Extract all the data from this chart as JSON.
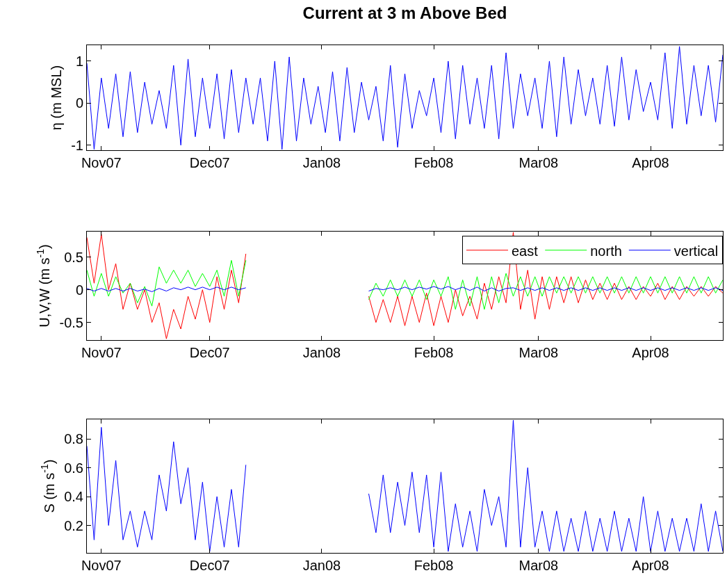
{
  "chart_data": [
    {
      "type": "line",
      "title": "Current at 3 m Above Bed",
      "ylabel": "η (m MSL)",
      "legend": false,
      "grid": false,
      "marker": "none",
      "line_style": "solid",
      "xlim": [
        "2007-10-28",
        "2008-04-21"
      ],
      "ylim": [
        -1.12,
        1.38
      ],
      "yticks": [
        -1,
        0,
        1
      ],
      "xticks": [
        {
          "value": "2007-11-01",
          "label": "Nov07"
        },
        {
          "value": "2007-12-01",
          "label": "Dec07"
        },
        {
          "value": "2008-01-01",
          "label": "Jan08"
        },
        {
          "value": "2008-02-01",
          "label": "Feb08"
        },
        {
          "value": "2008-03-01",
          "label": "Mar08"
        },
        {
          "value": "2008-04-01",
          "label": "Apr08"
        }
      ],
      "x": [
        "2007-10-28",
        "2007-10-30",
        "2007-11-01",
        "2007-11-03",
        "2007-11-05",
        "2007-11-07",
        "2007-11-09",
        "2007-11-11",
        "2007-11-13",
        "2007-11-15",
        "2007-11-17",
        "2007-11-19",
        "2007-11-21",
        "2007-11-23",
        "2007-11-25",
        "2007-11-27",
        "2007-11-29",
        "2007-12-01",
        "2007-12-03",
        "2007-12-05",
        "2007-12-07",
        "2007-12-09",
        "2007-12-11",
        "2007-12-13",
        "2007-12-15",
        "2007-12-17",
        "2007-12-19",
        "2007-12-21",
        "2007-12-23",
        "2007-12-25",
        "2007-12-27",
        "2007-12-29",
        "2007-12-31",
        "2008-01-02",
        "2008-01-04",
        "2008-01-06",
        "2008-01-08",
        "2008-01-10",
        "2008-01-12",
        "2008-01-14",
        "2008-01-16",
        "2008-01-18",
        "2008-01-20",
        "2008-01-22",
        "2008-01-24",
        "2008-01-26",
        "2008-01-28",
        "2008-01-30",
        "2008-02-01",
        "2008-02-03",
        "2008-02-05",
        "2008-02-07",
        "2008-02-09",
        "2008-02-11",
        "2008-02-13",
        "2008-02-15",
        "2008-02-17",
        "2008-02-19",
        "2008-02-21",
        "2008-02-23",
        "2008-02-25",
        "2008-02-27",
        "2008-02-29",
        "2008-03-02",
        "2008-03-04",
        "2008-03-06",
        "2008-03-08",
        "2008-03-10",
        "2008-03-12",
        "2008-03-14",
        "2008-03-16",
        "2008-03-18",
        "2008-03-20",
        "2008-03-22",
        "2008-03-24",
        "2008-03-26",
        "2008-03-28",
        "2008-03-30",
        "2008-04-01",
        "2008-04-03",
        "2008-04-05",
        "2008-04-07",
        "2008-04-09",
        "2008-04-11",
        "2008-04-13",
        "2008-04-15",
        "2008-04-17",
        "2008-04-19",
        "2008-04-21"
      ],
      "series": [
        {
          "color": "#0000ff",
          "values": [
            0.95,
            -1.1,
            0.6,
            -0.6,
            0.7,
            -0.8,
            0.75,
            -0.7,
            0.5,
            -0.5,
            0.3,
            -0.6,
            0.9,
            -1.0,
            1.05,
            -0.8,
            0.6,
            -0.6,
            0.7,
            -0.85,
            0.8,
            -0.7,
            0.6,
            -0.5,
            0.6,
            -0.9,
            1.0,
            -1.1,
            1.1,
            -0.9,
            0.6,
            -0.5,
            0.4,
            -0.7,
            0.75,
            -0.9,
            0.85,
            -0.7,
            0.5,
            -0.4,
            0.4,
            -0.9,
            0.9,
            -1.05,
            0.7,
            -0.6,
            0.3,
            -0.3,
            0.6,
            -0.7,
            1.0,
            -0.85,
            0.9,
            -0.5,
            0.6,
            -0.6,
            0.9,
            -0.85,
            1.2,
            -0.6,
            0.7,
            -0.3,
            0.6,
            -0.6,
            1.0,
            -0.8,
            1.1,
            -0.5,
            0.8,
            -0.3,
            0.6,
            -0.5,
            0.9,
            -0.55,
            1.1,
            -0.4,
            0.8,
            -0.2,
            0.5,
            -0.4,
            1.2,
            -0.6,
            1.35,
            -0.5,
            0.9,
            -0.3,
            0.9,
            -0.45,
            1.15
          ]
        }
      ]
    },
    {
      "type": "line",
      "ylabel": "U,V,W (m s$^{-1}$)",
      "legend": "top right",
      "grid": false,
      "marker": "none",
      "line_style": "solid",
      "xlim": [
        "2007-10-28",
        "2008-04-21"
      ],
      "ylim": [
        -0.77,
        0.89
      ],
      "yticks": [
        -0.5,
        0,
        0.5
      ],
      "xticks": [
        {
          "value": "2007-11-01",
          "label": "Nov07"
        },
        {
          "value": "2007-12-01",
          "label": "Dec07"
        },
        {
          "value": "2008-01-01",
          "label": "Jan08"
        },
        {
          "value": "2008-02-01",
          "label": "Feb08"
        },
        {
          "value": "2008-03-01",
          "label": "Mar08"
        },
        {
          "value": "2008-04-01",
          "label": "Apr08"
        }
      ],
      "x": [
        "2007-10-28",
        "2007-10-30",
        "2007-11-01",
        "2007-11-03",
        "2007-11-05",
        "2007-11-07",
        "2007-11-09",
        "2007-11-11",
        "2007-11-13",
        "2007-11-15",
        "2007-11-17",
        "2007-11-19",
        "2007-11-21",
        "2007-11-23",
        "2007-11-25",
        "2007-11-27",
        "2007-11-29",
        "2007-12-01",
        "2007-12-03",
        "2007-12-05",
        "2007-12-07",
        "2007-12-09",
        "2007-12-11",
        "2007-12-13",
        "2007-12-15",
        "2007-12-17",
        "2007-12-19",
        "2007-12-21",
        "2007-12-23",
        "2007-12-25",
        "2007-12-27",
        "2007-12-29",
        "2007-12-31",
        "2008-01-02",
        "2008-01-04",
        "2008-01-06",
        "2008-01-08",
        "2008-01-10",
        "2008-01-12",
        "2008-01-14",
        "2008-01-16",
        "2008-01-18",
        "2008-01-20",
        "2008-01-22",
        "2008-01-24",
        "2008-01-26",
        "2008-01-28",
        "2008-01-30",
        "2008-02-01",
        "2008-02-03",
        "2008-02-05",
        "2008-02-07",
        "2008-02-09",
        "2008-02-11",
        "2008-02-13",
        "2008-02-15",
        "2008-02-17",
        "2008-02-19",
        "2008-02-21",
        "2008-02-23",
        "2008-02-25",
        "2008-02-27",
        "2008-02-29",
        "2008-03-02",
        "2008-03-04",
        "2008-03-06",
        "2008-03-08",
        "2008-03-10",
        "2008-03-12",
        "2008-03-14",
        "2008-03-16",
        "2008-03-18",
        "2008-03-20",
        "2008-03-22",
        "2008-03-24",
        "2008-03-26",
        "2008-03-28",
        "2008-03-30",
        "2008-04-01",
        "2008-04-03",
        "2008-04-05",
        "2008-04-07",
        "2008-04-09",
        "2008-04-11",
        "2008-04-13",
        "2008-04-15",
        "2008-04-17",
        "2008-04-19",
        "2008-04-21"
      ],
      "series": [
        {
          "name": "east",
          "color": "#ff0000",
          "values": [
            0.8,
            0.1,
            0.85,
            0,
            0.4,
            -0.3,
            0.1,
            -0.3,
            0,
            -0.5,
            -0.2,
            -0.75,
            -0.3,
            -0.6,
            -0.1,
            -0.45,
            0,
            -0.5,
            0.2,
            -0.3,
            0.3,
            -0.2,
            0.55,
            null,
            null,
            null,
            null,
            null,
            null,
            null,
            null,
            null,
            null,
            null,
            null,
            null,
            null,
            null,
            null,
            -0.1,
            -0.5,
            -0.15,
            -0.5,
            -0.1,
            -0.55,
            -0.1,
            -0.5,
            -0.05,
            -0.55,
            -0.1,
            -0.5,
            0,
            -0.4,
            -0.1,
            -0.45,
            0.1,
            -0.3,
            0.2,
            -0.2,
            0.88,
            -0.3,
            0.3,
            -0.45,
            0.2,
            -0.3,
            0.2,
            -0.2,
            0.2,
            -0.2,
            0.15,
            -0.15,
            0.1,
            -0.15,
            0.1,
            -0.15,
            0.05,
            -0.15,
            0.05,
            -0.1,
            0.1,
            -0.15,
            0.05,
            -0.15,
            0.05,
            -0.1,
            0.05,
            -0.1,
            0.05,
            -0.05
          ]
        },
        {
          "name": "north",
          "color": "#00ff00",
          "values": [
            0.3,
            -0.1,
            0.25,
            -0.1,
            0.2,
            -0.05,
            0.1,
            -0.2,
            0.05,
            -0.25,
            0.35,
            0.1,
            0.3,
            0.1,
            0.3,
            0.05,
            0.25,
            0.05,
            0.3,
            -0.1,
            0.45,
            -0.1,
            0.45,
            null,
            null,
            null,
            null,
            null,
            null,
            null,
            null,
            null,
            null,
            null,
            null,
            null,
            null,
            null,
            null,
            -0.15,
            0.1,
            -0.1,
            0.15,
            -0.1,
            0.15,
            -0.1,
            0.15,
            -0.15,
            0.15,
            -0.1,
            0.2,
            -0.3,
            0.15,
            -0.25,
            0.2,
            -0.3,
            0.2,
            -0.2,
            0.25,
            -0.1,
            0.2,
            -0.1,
            0.2,
            -0.1,
            0.2,
            -0.05,
            0.2,
            -0.05,
            0.2,
            -0.05,
            0.2,
            -0.05,
            0.2,
            -0.05,
            0.2,
            -0.05,
            0.2,
            -0.05,
            0.2,
            -0.05,
            0.2,
            -0.05,
            0.2,
            -0.05,
            0.2,
            -0.05,
            0.2,
            -0.05,
            0.15
          ]
        },
        {
          "name": "vertical",
          "color": "#0000ff",
          "values": [
            0.02,
            -0.02,
            0.02,
            -0.02,
            0.02,
            -0.02,
            0.02,
            -0.02,
            0.01,
            -0.03,
            0.02,
            -0.02,
            0.03,
            0,
            0.04,
            0,
            0.04,
            0,
            0.04,
            0,
            0.04,
            0,
            0.03,
            null,
            null,
            null,
            null,
            null,
            null,
            null,
            null,
            null,
            null,
            null,
            null,
            null,
            null,
            null,
            null,
            -0.02,
            0.02,
            0,
            0.03,
            0,
            0.04,
            0,
            0.04,
            0.01,
            0.05,
            0.01,
            0.05,
            0,
            0.04,
            -0.01,
            0.04,
            -0.02,
            0.03,
            -0.02,
            0.02,
            0.03,
            -0.01,
            0.03,
            -0.01,
            0.03,
            -0.01,
            0.03,
            -0.01,
            0.03,
            -0.01,
            0.03,
            -0.01,
            0.03,
            -0.01,
            0.03,
            -0.01,
            0.03,
            -0.01,
            0.03,
            -0.01,
            0.03,
            -0.01,
            0.03,
            -0.01,
            0.03,
            -0.01,
            0.03,
            -0.01,
            0.03,
            -0.01
          ]
        }
      ]
    },
    {
      "type": "line",
      "ylabel": "S (m s$^{-1}$)",
      "legend": false,
      "grid": false,
      "marker": "none",
      "line_style": "solid",
      "xlim": [
        "2007-10-28",
        "2008-04-21"
      ],
      "ylim": [
        0.01,
        0.935
      ],
      "yticks": [
        0.2,
        0.4,
        0.6,
        0.8
      ],
      "xticks": [
        {
          "value": "2007-11-01",
          "label": "Nov07"
        },
        {
          "value": "2007-12-01",
          "label": "Dec07"
        },
        {
          "value": "2008-01-01",
          "label": "Jan08"
        },
        {
          "value": "2008-02-01",
          "label": "Feb08"
        },
        {
          "value": "2008-03-01",
          "label": "Mar08"
        },
        {
          "value": "2008-04-01",
          "label": "Apr08"
        }
      ],
      "x": [
        "2007-10-28",
        "2007-10-30",
        "2007-11-01",
        "2007-11-03",
        "2007-11-05",
        "2007-11-07",
        "2007-11-09",
        "2007-11-11",
        "2007-11-13",
        "2007-11-15",
        "2007-11-17",
        "2007-11-19",
        "2007-11-21",
        "2007-11-23",
        "2007-11-25",
        "2007-11-27",
        "2007-11-29",
        "2007-12-01",
        "2007-12-03",
        "2007-12-05",
        "2007-12-07",
        "2007-12-09",
        "2007-12-11",
        "2007-12-13",
        "2007-12-15",
        "2007-12-17",
        "2007-12-19",
        "2007-12-21",
        "2007-12-23",
        "2007-12-25",
        "2007-12-27",
        "2007-12-29",
        "2007-12-31",
        "2008-01-02",
        "2008-01-04",
        "2008-01-06",
        "2008-01-08",
        "2008-01-10",
        "2008-01-12",
        "2008-01-14",
        "2008-01-16",
        "2008-01-18",
        "2008-01-20",
        "2008-01-22",
        "2008-01-24",
        "2008-01-26",
        "2008-01-28",
        "2008-01-30",
        "2008-02-01",
        "2008-02-03",
        "2008-02-05",
        "2008-02-07",
        "2008-02-09",
        "2008-02-11",
        "2008-02-13",
        "2008-02-15",
        "2008-02-17",
        "2008-02-19",
        "2008-02-21",
        "2008-02-23",
        "2008-02-25",
        "2008-02-27",
        "2008-02-29",
        "2008-03-02",
        "2008-03-04",
        "2008-03-06",
        "2008-03-08",
        "2008-03-10",
        "2008-03-12",
        "2008-03-14",
        "2008-03-16",
        "2008-03-18",
        "2008-03-20",
        "2008-03-22",
        "2008-03-24",
        "2008-03-26",
        "2008-03-28",
        "2008-03-30",
        "2008-04-01",
        "2008-04-03",
        "2008-04-05",
        "2008-04-07",
        "2008-04-09",
        "2008-04-11",
        "2008-04-13",
        "2008-04-15",
        "2008-04-17",
        "2008-04-19",
        "2008-04-21"
      ],
      "series": [
        {
          "color": "#0000ff",
          "values": [
            0.75,
            0.1,
            0.88,
            0.2,
            0.65,
            0.1,
            0.3,
            0.05,
            0.3,
            0.1,
            0.55,
            0.3,
            0.78,
            0.35,
            0.6,
            0.1,
            0.5,
            0.02,
            0.4,
            0.05,
            0.45,
            0.05,
            0.62,
            null,
            null,
            null,
            null,
            null,
            null,
            null,
            null,
            null,
            null,
            null,
            null,
            null,
            null,
            null,
            null,
            0.42,
            0.15,
            0.55,
            0.15,
            0.5,
            0.2,
            0.57,
            0.15,
            0.55,
            0.05,
            0.57,
            0.02,
            0.35,
            0.05,
            0.3,
            0.02,
            0.45,
            0.2,
            0.4,
            0.05,
            0.93,
            0.05,
            0.6,
            0.05,
            0.3,
            0.02,
            0.3,
            0.02,
            0.25,
            0.02,
            0.3,
            0.02,
            0.25,
            0.02,
            0.3,
            0.02,
            0.25,
            0.02,
            0.4,
            0.02,
            0.3,
            0.02,
            0.25,
            0.02,
            0.25,
            0.02,
            0.35,
            0.02,
            0.3,
            0.02
          ]
        }
      ]
    }
  ]
}
